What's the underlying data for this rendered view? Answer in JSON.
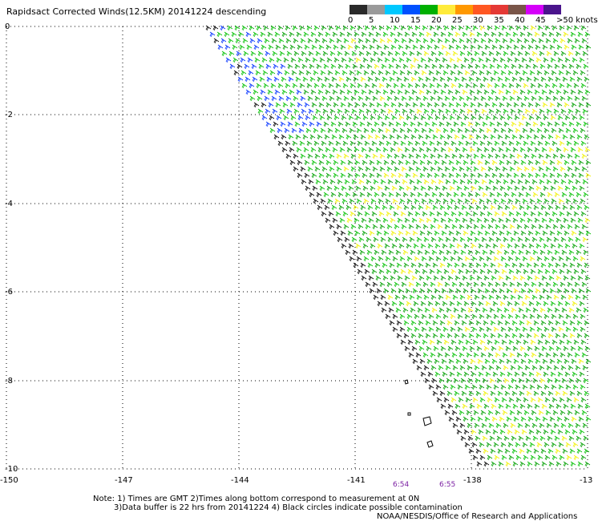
{
  "title": "Rapidsact Corrected Winds(12.5KM) 20141224 descending",
  "legend": {
    "colors": [
      "#2a2a2a",
      "#9a9a9a",
      "#00c8ff",
      "#0050ff",
      "#00b000",
      "#ffeb3b",
      "#ff9800",
      "#ff5722",
      "#e53935",
      "#795548",
      "#d500f9",
      "#4a148c"
    ],
    "labels": [
      "0",
      "5",
      "10",
      "15",
      "20",
      "25",
      "30",
      "35",
      "40",
      "45",
      ">50 knots"
    ]
  },
  "axes": {
    "lon_labels": [
      "-150",
      "-147",
      "-144",
      "-141",
      "-138",
      "-13"
    ],
    "lat_labels": [
      "0",
      "-2",
      "-4",
      "-6",
      "-8",
      "-10"
    ]
  },
  "times": [
    "6:54",
    "6:55"
  ],
  "notes": {
    "line1": "Note: 1) Times are GMT 2)Times along bottom correspond to measurement at 0N",
    "line2": "3)Data buffer is 22 hrs from 20141224 4) Black circles indicate possible contamination",
    "line3": "NOAA/NESDIS/Office of Research and Applications"
  }
}
